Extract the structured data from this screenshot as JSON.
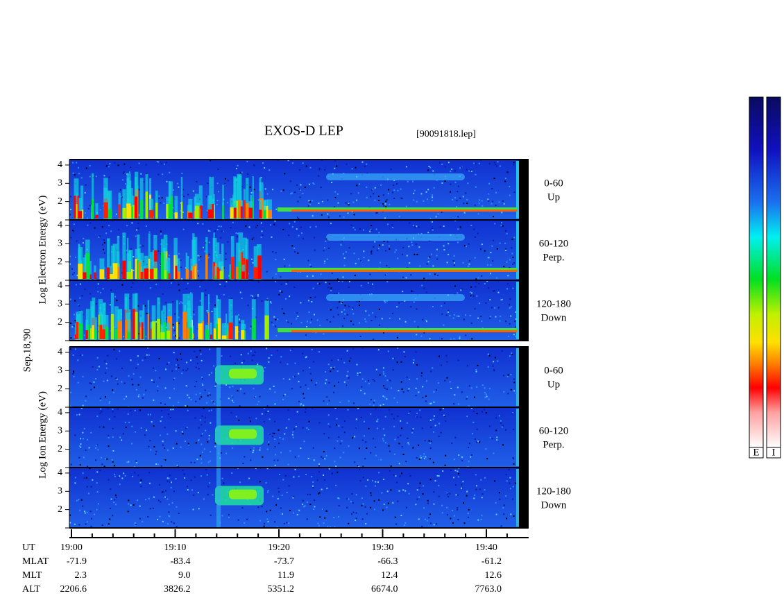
{
  "title": "EXOS-D LEP",
  "file": "[90091818.lep]",
  "electron_axis_label": "Log  Electron  Energy (eV)",
  "ion_axis_label": "Log  Ion  Energy (eV)",
  "date": "Sep.18,'90",
  "ylim": [
    1,
    4.3
  ],
  "yticks": [
    2,
    3,
    4
  ],
  "panels": [
    {
      "angle": "0-60",
      "direction": "Up"
    },
    {
      "angle": "60-120",
      "direction": "Perp."
    },
    {
      "angle": "120-180",
      "direction": "Down"
    },
    {
      "angle": "0-60",
      "direction": "Up"
    },
    {
      "angle": "60-120",
      "direction": "Perp."
    },
    {
      "angle": "120-180",
      "direction": "Down"
    }
  ],
  "colorbar_labels": [
    "E",
    "I"
  ],
  "orbit_table": {
    "rows": [
      {
        "label": "UT",
        "values": [
          "19:00",
          "19:10",
          "19:20",
          "19:30",
          "19:40"
        ]
      },
      {
        "label": "MLAT",
        "values": [
          "-71.9",
          "-83.4",
          "-73.7",
          "-66.3",
          "-61.2"
        ]
      },
      {
        "label": "MLT",
        "values": [
          "2.3",
          "9.0",
          "11.9",
          "12.4",
          "12.6"
        ]
      },
      {
        "label": "ALT",
        "values": [
          "2206.6",
          "3826.2",
          "5351.2",
          "6674.0",
          "7763.0"
        ]
      }
    ]
  }
}
